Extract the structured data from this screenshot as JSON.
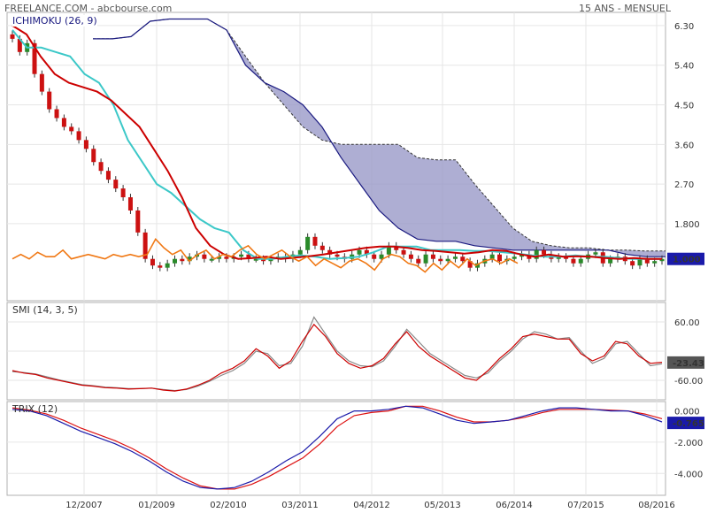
{
  "header": {
    "source": "FREELANCE.COM - abcbourse.com",
    "period": "15 ANS - MENSUEL"
  },
  "colors": {
    "tenkan": "#cc0000",
    "kijun": "#3cc8c8",
    "chikou": "#f07814",
    "span_a": "#333333",
    "span_b": "#1a1a80",
    "cloud": "#9a9ac8",
    "up": "#2a8a2a",
    "down": "#cc1111",
    "smi": "#cc0000",
    "smi_signal": "#888888",
    "trix": "#1a1aaa",
    "trix_signal": "#dd1111",
    "badge": "#1a1aaa"
  },
  "chart_data": [
    {
      "type": "candlestick",
      "label": "ICHIMOKU (26, 9)",
      "y_ticks": [
        "6.30",
        "5.40",
        "4.50",
        "3.60",
        "2.70",
        "1.800"
      ],
      "y_tick_values": [
        6.3,
        5.4,
        4.5,
        3.6,
        2.7,
        1.8
      ],
      "ylim": [
        0.05,
        6.6
      ],
      "last_value": "1.000",
      "x_ticks": [
        "12/2007",
        "01/2009",
        "02/2010",
        "03/2011",
        "04/2012",
        "05/2013",
        "06/2014",
        "07/2015",
        "08/2016"
      ],
      "candles_close": [
        6.0,
        5.7,
        5.9,
        5.2,
        4.8,
        4.4,
        4.2,
        4.0,
        3.9,
        3.7,
        3.5,
        3.2,
        3.0,
        2.8,
        2.6,
        2.4,
        2.1,
        1.6,
        1.0,
        0.85,
        0.8,
        0.9,
        1.0,
        0.95,
        1.05,
        1.1,
        1.0,
        1.0,
        1.05,
        1.0,
        1.05,
        1.1,
        1.0,
        1.0,
        0.95,
        1.0,
        1.05,
        1.0,
        1.1,
        1.2,
        1.5,
        1.3,
        1.2,
        1.1,
        1.05,
        1.0,
        1.1,
        1.2,
        1.1,
        1.0,
        1.1,
        1.3,
        1.2,
        1.1,
        1.0,
        0.9,
        1.1,
        1.0,
        0.95,
        1.0,
        1.05,
        0.95,
        0.8,
        0.9,
        1.0,
        1.1,
        0.95,
        1.0,
        1.05,
        1.1,
        1.0,
        1.2,
        1.1,
        1.0,
        1.05,
        1.0,
        0.9,
        1.0,
        1.1,
        1.15,
        0.9,
        1.0,
        1.05,
        0.95,
        0.85,
        1.0,
        0.9,
        0.95,
        1.0
      ],
      "tenkan": [
        6.3,
        6.1,
        5.6,
        5.2,
        5.0,
        4.9,
        4.8,
        4.6,
        4.3,
        4.0,
        3.5,
        3.0,
        2.4,
        1.7,
        1.3,
        1.1,
        1.0,
        1.02,
        1.05,
        1.0,
        1.03,
        1.06,
        1.1,
        1.15,
        1.2,
        1.25,
        1.28,
        1.28,
        1.25,
        1.2,
        1.18,
        1.15,
        1.12,
        1.15,
        1.2,
        1.18,
        1.1,
        1.05,
        1.1,
        1.05,
        1.06,
        1.05,
        1.02,
        1.0,
        1.02,
        1.0,
        1.0
      ],
      "kijun": [
        6.2,
        5.8,
        5.8,
        5.7,
        5.6,
        5.2,
        5.0,
        4.5,
        3.7,
        3.2,
        2.7,
        2.5,
        2.2,
        1.9,
        1.7,
        1.6,
        1.2,
        1.0,
        1.0,
        1.05,
        1.08,
        1.05,
        1.0,
        1.02,
        1.05,
        1.15,
        1.28,
        1.28,
        1.28,
        1.2,
        1.2,
        1.2,
        1.18,
        1.18,
        1.15,
        1.12,
        1.08,
        1.05,
        1.05,
        1.08,
        1.05,
        1.05,
        1.02,
        1.0,
        1.0,
        1.0
      ],
      "chikou": [
        1.0,
        1.1,
        1.0,
        1.15,
        1.05,
        1.05,
        1.2,
        1.0,
        1.05,
        1.1,
        1.05,
        1.0,
        1.1,
        1.05,
        1.1,
        1.05,
        1.1,
        1.45,
        1.25,
        1.1,
        1.2,
        0.95,
        1.1,
        1.2,
        1.0,
        1.1,
        1.05,
        1.2,
        1.3,
        1.1,
        1.0,
        1.1,
        1.2,
        1.05,
        0.95,
        1.05,
        0.85,
        1.0,
        0.9,
        0.8,
        0.95,
        1.0,
        0.9,
        0.75,
        1.0,
        1.1,
        1.05,
        0.9,
        0.85,
        0.7,
        0.9,
        0.75,
        0.95,
        0.8,
        1.0,
        0.85,
        0.95,
        1.0,
        0.9,
        1.0,
        0.9
      ],
      "span_a": [
        6.0,
        6.0,
        6.05,
        6.4,
        6.45,
        6.45,
        6.45,
        6.2,
        5.6,
        5.0,
        4.5,
        4.0,
        3.7,
        3.6,
        3.6,
        3.6,
        3.6,
        3.3,
        3.25,
        3.25,
        2.7,
        2.2,
        1.7,
        1.4,
        1.3,
        1.25,
        1.25,
        1.2,
        1.2,
        1.18,
        1.18
      ],
      "span_b": [
        6.0,
        6.0,
        6.05,
        6.4,
        6.45,
        6.45,
        6.45,
        6.2,
        5.4,
        5.0,
        4.8,
        4.5,
        4.0,
        3.3,
        2.7,
        2.1,
        1.7,
        1.45,
        1.4,
        1.4,
        1.3,
        1.25,
        1.2,
        1.2,
        1.2,
        1.2,
        1.2,
        1.2,
        1.1,
        1.05,
        1.05
      ]
    },
    {
      "type": "line",
      "label": "SMI (14, 3, 5)",
      "y_ticks": [
        "60.00",
        "-60.00"
      ],
      "y_tick_values": [
        60,
        -60
      ],
      "ylim": [
        -100,
        100
      ],
      "last_value": "-23.43",
      "series": [
        {
          "values": [
            -40,
            -45,
            -48,
            -55,
            -60,
            -65,
            -70,
            -72,
            -75,
            -76,
            -78,
            -77,
            -76,
            -80,
            -82,
            -78,
            -70,
            -60,
            -45,
            -35,
            -20,
            5,
            -10,
            -35,
            -20,
            20,
            55,
            30,
            -5,
            -25,
            -35,
            -30,
            -15,
            15,
            40,
            10,
            -10,
            -25,
            -40,
            -55,
            -60,
            -40,
            -15,
            5,
            30,
            35,
            30,
            25,
            25,
            -5,
            -20,
            -10,
            20,
            15,
            -10,
            -25,
            -23
          ]
        },
        {
          "values": [
            -42,
            -44,
            -47,
            -53,
            -59,
            -64,
            -69,
            -71,
            -74,
            -75,
            -77,
            -77,
            -76,
            -79,
            -81,
            -79,
            -72,
            -62,
            -50,
            -40,
            -25,
            0,
            -5,
            -30,
            -25,
            10,
            70,
            35,
            0,
            -20,
            -30,
            -32,
            -20,
            10,
            45,
            20,
            -5,
            -20,
            -35,
            -50,
            -55,
            -45,
            -20,
            0,
            25,
            40,
            35,
            25,
            28,
            0,
            -25,
            -15,
            15,
            20,
            -5,
            -30,
            -26
          ]
        }
      ]
    },
    {
      "type": "line",
      "label": "TRIX (12)",
      "y_ticks": [
        "0.000",
        "-2.000",
        "-4.000"
      ],
      "y_tick_values": [
        0,
        -2,
        -4
      ],
      "ylim": [
        -5.4,
        0.6
      ],
      "last_value": "-0.765",
      "series": [
        {
          "values": [
            0.1,
            0.0,
            -0.3,
            -0.8,
            -1.3,
            -1.7,
            -2.1,
            -2.6,
            -3.2,
            -3.9,
            -4.5,
            -4.9,
            -5.0,
            -4.9,
            -4.5,
            -3.9,
            -3.2,
            -2.6,
            -1.6,
            -0.5,
            0.0,
            0.0,
            0.1,
            0.3,
            0.2,
            -0.2,
            -0.6,
            -0.8,
            -0.7,
            -0.6,
            -0.3,
            0.0,
            0.2,
            0.2,
            0.1,
            0.0,
            0.0,
            -0.3,
            -0.7
          ]
        },
        {
          "values": [
            0.2,
            0.05,
            -0.2,
            -0.6,
            -1.1,
            -1.5,
            -1.9,
            -2.4,
            -3.0,
            -3.7,
            -4.3,
            -4.8,
            -5.0,
            -5.0,
            -4.7,
            -4.2,
            -3.6,
            -3.0,
            -2.1,
            -1.0,
            -0.3,
            -0.1,
            0.0,
            0.3,
            0.3,
            0.0,
            -0.4,
            -0.7,
            -0.7,
            -0.6,
            -0.4,
            -0.1,
            0.1,
            0.1,
            0.1,
            0.05,
            0.0,
            -0.2,
            -0.5
          ]
        }
      ]
    }
  ]
}
